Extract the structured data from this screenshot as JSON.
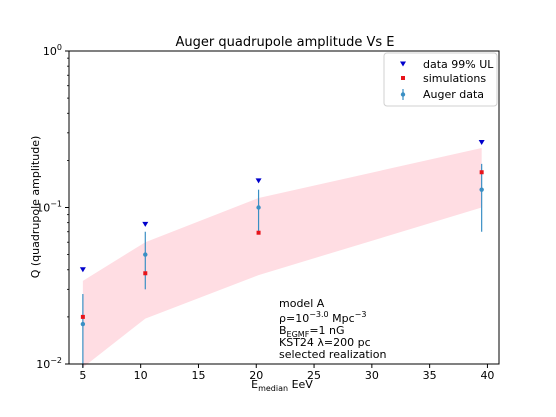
{
  "chart_data": {
    "type": "scatter",
    "title": "Auger quadrupole amplitude Vs E",
    "xlabel": {
      "main": "E",
      "sub": "median",
      "rest": " EeV"
    },
    "ylabel": "Q (quadrupole amplitude)",
    "x_range": [
      3.8,
      41
    ],
    "y_range": [
      0.01,
      1.0
    ],
    "y_scale": "log",
    "x_ticks": [
      5,
      10,
      15,
      20,
      25,
      30,
      35,
      40
    ],
    "x_tick_labels": [
      "5",
      "10",
      "15",
      "20",
      "25",
      "30",
      "35",
      "40"
    ],
    "y_ticks": [
      {
        "value": 0.01,
        "base": "10",
        "exp": "−2"
      },
      {
        "value": 0.1,
        "base": "10",
        "exp": "−1"
      },
      {
        "value": 1.0,
        "base": "10",
        "exp": "0"
      }
    ],
    "grid": false,
    "legend_position": "top-right",
    "band": {
      "color": "#ffdde3",
      "x": [
        5,
        10.4,
        20.2,
        39.5
      ],
      "upper": [
        0.034,
        0.06,
        0.115,
        0.24
      ],
      "lower": [
        0.0095,
        0.0195,
        0.037,
        0.1
      ]
    },
    "series": [
      {
        "name": "data 99% UL",
        "marker": "triangle-down",
        "color": "#0000cc",
        "x": [
          5,
          10.4,
          20.2,
          39.5
        ],
        "y": [
          0.04,
          0.078,
          0.148,
          0.26
        ]
      },
      {
        "name": "simulations",
        "marker": "square",
        "color": "#e8141b",
        "x": [
          5,
          10.4,
          20.2,
          39.5
        ],
        "y": [
          0.02,
          0.038,
          0.069,
          0.168
        ]
      },
      {
        "name": "Auger data",
        "marker": "circle-errorbar",
        "color": "#3a8fc4",
        "x": [
          5,
          10.4,
          20.2,
          39.5
        ],
        "y": [
          0.018,
          0.05,
          0.1,
          0.13
        ],
        "y_low": [
          0.0095,
          0.03,
          0.07,
          0.07
        ],
        "y_high": [
          0.028,
          0.07,
          0.13,
          0.19
        ]
      }
    ],
    "annotation": {
      "line1": "model A",
      "line2": {
        "a": "ρ=10",
        "sup": "−3.0",
        "b": " Mpc",
        "sup2": "−3"
      },
      "line3": {
        "a": "B",
        "sub": "EGMF",
        "b": "=1 nG"
      },
      "line4": "KST24 λ=200 pc",
      "line5": "selected realization"
    }
  }
}
